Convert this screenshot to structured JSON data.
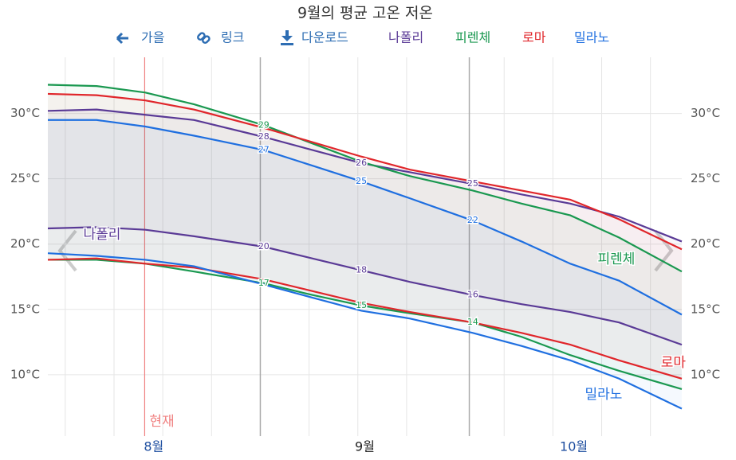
{
  "chart_data": {
    "type": "range-line",
    "title": "9월의 평균 고온 저온",
    "buttons": [
      "가을",
      "링크",
      "다운로드"
    ],
    "x": [
      0,
      7,
      14,
      21,
      31,
      38,
      45,
      52,
      61,
      68,
      75,
      82,
      91
    ],
    "xlim": [
      0,
      91
    ],
    "xticks": [
      {
        "value": 15.2,
        "label": "8월"
      },
      {
        "value": 45.5,
        "label": "9월"
      },
      {
        "value": 75.5,
        "label": "10월"
      }
    ],
    "current_month_tick": 1,
    "month_lines": [
      30.5,
      60.5
    ],
    "xgrid": [
      2.5,
      9.5,
      16.5,
      23.5,
      37.5,
      44.5,
      51.5,
      65.5,
      72.5,
      79.5,
      86.5
    ],
    "ylim": [
      5.3,
      34.3
    ],
    "yticks": [
      {
        "value": 10,
        "label": "10°C"
      },
      {
        "value": 15,
        "label": "15°C"
      },
      {
        "value": 20,
        "label": "20°C"
      },
      {
        "value": 25,
        "label": "25°C"
      },
      {
        "value": 30,
        "label": "30°C"
      }
    ],
    "grid": true,
    "now": {
      "x": 13.9,
      "label": "현재"
    },
    "series": [
      {
        "name": "나폴리",
        "color": "#5a3a96",
        "high": [
          30.2,
          30.3,
          29.9,
          29.5,
          28.2,
          27.2,
          26.2,
          25.5,
          24.6,
          23.8,
          23.1,
          22.1,
          20.2
        ],
        "high_labels": [
          null,
          null,
          null,
          null,
          "28",
          null,
          "26",
          null,
          "25",
          null,
          null,
          null,
          null
        ],
        "low": [
          21.2,
          21.3,
          21.1,
          20.6,
          19.8,
          18.9,
          18.0,
          17.1,
          16.1,
          15.4,
          14.8,
          14.0,
          12.3
        ],
        "low_labels": [
          null,
          null,
          null,
          null,
          "20",
          null,
          "18",
          null,
          "16",
          null,
          null,
          null,
          null
        ]
      },
      {
        "name": "피렌체",
        "color": "#1a9850",
        "high": [
          32.2,
          32.1,
          31.6,
          30.7,
          29.1,
          27.7,
          26.3,
          25.2,
          24.1,
          23.1,
          22.2,
          20.5,
          17.9
        ],
        "high_labels": [
          null,
          null,
          null,
          null,
          "29",
          null,
          null,
          null,
          null,
          null,
          null,
          null,
          null
        ],
        "low": [
          18.8,
          18.8,
          18.5,
          17.9,
          17.0,
          16.1,
          15.3,
          14.7,
          14.0,
          12.9,
          11.5,
          10.3,
          8.9
        ],
        "low_labels": [
          null,
          null,
          null,
          null,
          "17",
          null,
          "15",
          null,
          "14",
          null,
          null,
          null,
          null
        ]
      },
      {
        "name": "로마",
        "color": "#e0262b",
        "high": [
          31.5,
          31.4,
          31.0,
          30.3,
          28.9,
          27.8,
          26.7,
          25.7,
          24.8,
          24.1,
          23.4,
          21.9,
          19.6
        ],
        "low": [
          18.8,
          18.9,
          18.5,
          18.2,
          17.3,
          16.4,
          15.5,
          14.8,
          14.0,
          13.2,
          12.3,
          11.1,
          9.7
        ]
      },
      {
        "name": "밀라노",
        "color": "#1f6fe0",
        "high": [
          29.5,
          29.5,
          29.0,
          28.3,
          27.2,
          26.0,
          24.8,
          23.5,
          21.8,
          20.2,
          18.5,
          17.2,
          14.6
        ],
        "high_labels": [
          null,
          null,
          null,
          null,
          "27",
          null,
          "25",
          null,
          "22",
          null,
          null,
          null,
          null
        ],
        "low": [
          19.3,
          19.1,
          18.8,
          18.3,
          16.9,
          15.9,
          14.9,
          14.3,
          13.2,
          12.2,
          11.1,
          9.7,
          7.4
        ]
      }
    ]
  }
}
